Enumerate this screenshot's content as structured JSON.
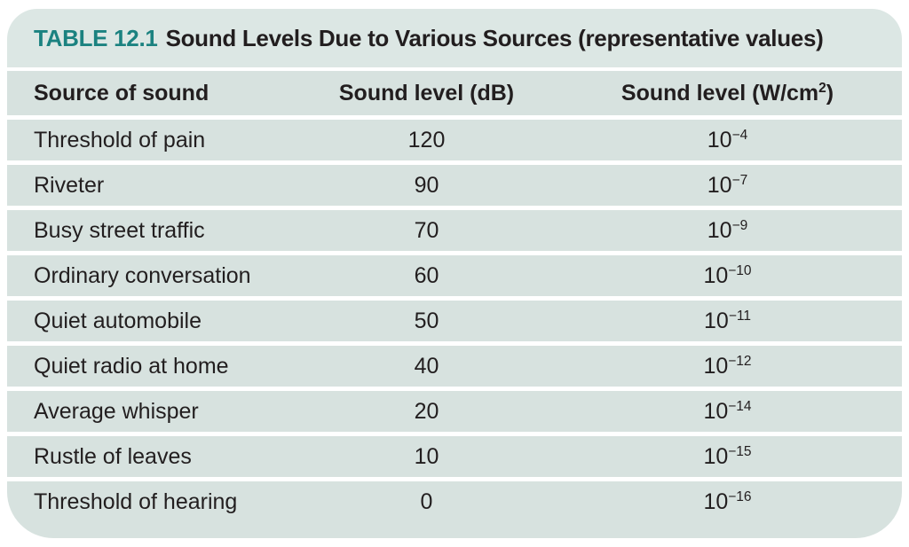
{
  "colors": {
    "accent_teal": "#1b8280",
    "band_background": "#d7e2df",
    "title_band_background": "#dce7e4",
    "text": "#221e1f",
    "page_background": "#ffffff"
  },
  "table": {
    "number": "TABLE 12.1",
    "caption": "Sound Levels Due to Various Sources (representative values)",
    "columns": {
      "source": "Source of sound",
      "db": "Sound level (dB)",
      "power_prefix": "Sound level (W/cm",
      "power_sup": "2",
      "power_suffix": ")"
    },
    "rows": [
      {
        "source": "Threshold of pain",
        "db": "120",
        "power_base": "10",
        "power_exp": "−4"
      },
      {
        "source": "Riveter",
        "db": "90",
        "power_base": "10",
        "power_exp": "−7"
      },
      {
        "source": "Busy street traffic",
        "db": "70",
        "power_base": "10",
        "power_exp": "−9"
      },
      {
        "source": "Ordinary conversation",
        "db": "60",
        "power_base": "10",
        "power_exp": "−10"
      },
      {
        "source": "Quiet automobile",
        "db": "50",
        "power_base": "10",
        "power_exp": "−11"
      },
      {
        "source": "Quiet radio at home",
        "db": "40",
        "power_base": "10",
        "power_exp": "−12"
      },
      {
        "source": "Average whisper",
        "db": "20",
        "power_base": "10",
        "power_exp": "−14"
      },
      {
        "source": "Rustle of leaves",
        "db": "10",
        "power_base": "10",
        "power_exp": "−15"
      },
      {
        "source": "Threshold of hearing",
        "db": "0",
        "power_base": "10",
        "power_exp": "−16"
      }
    ]
  }
}
